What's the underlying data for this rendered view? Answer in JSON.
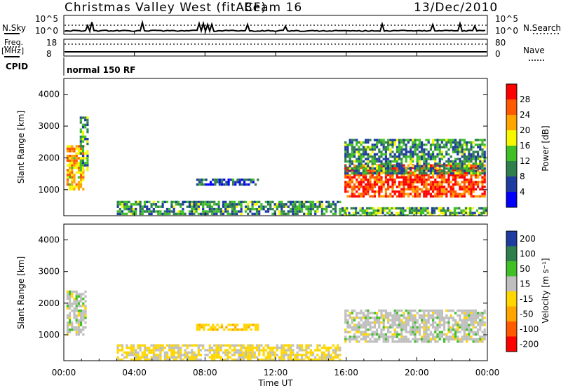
{
  "header": {
    "station": "Christmas Valley West (fitACF)",
    "beam": "Beam 16",
    "date": "13/Dec/2010"
  },
  "top_panels": {
    "nsky_label": "N.Sky",
    "nsky_ticks": [
      "10^5",
      "10^0"
    ],
    "nsearch_label": "N.Search",
    "nsearch_ticks": [
      "10^5",
      "10^0"
    ],
    "freq_label": "Freq.",
    "freq_unit": "[MHz]",
    "freq_ticks": [
      "18",
      "8"
    ],
    "nave_label": "Nave",
    "nave_ticks": [
      "80",
      "0"
    ],
    "cpid_label": "CPID",
    "cpid_value": "normal 150 RF"
  },
  "chart_data": [
    {
      "type": "heatmap",
      "name": "power",
      "ylabel": "Slant Range [km]",
      "xlabel": "",
      "ylim": [
        180,
        4500
      ],
      "y_ticks": [
        "1000",
        "2000",
        "3000",
        "4000"
      ],
      "x_range_hours": [
        0,
        24
      ],
      "colorbar": {
        "label": "Power [dB]",
        "ticks": [
          "4",
          "8",
          "12",
          "16",
          "20",
          "24",
          "28"
        ],
        "range": [
          0,
          30
        ],
        "colors": [
          "#0000ff",
          "#1e3ca0",
          "#2f7f4c",
          "#40bf26",
          "#f7f700",
          "#ffa500",
          "#ff5a00",
          "#ff0000"
        ]
      },
      "regions": [
        {
          "t": [
            0.15,
            1.1
          ],
          "r": [
            1000,
            2400
          ],
          "value": 20,
          "note_hours": ""
        },
        {
          "t": [
            0.9,
            1.4
          ],
          "r": [
            1600,
            3300
          ],
          "value": 12
        },
        {
          "t": [
            7.5,
            11.0
          ],
          "r": [
            1150,
            1350
          ],
          "value": 6
        },
        {
          "t": [
            3.0,
            15.6
          ],
          "r": [
            220,
            650
          ],
          "value": 10
        },
        {
          "t": [
            15.9,
            23.9
          ],
          "r": [
            800,
            1800
          ],
          "value": 26
        },
        {
          "t": [
            15.9,
            23.9
          ],
          "r": [
            1500,
            2600
          ],
          "value": 10
        },
        {
          "t": [
            15.6,
            24.0
          ],
          "r": [
            220,
            450
          ],
          "value": 12
        }
      ]
    },
    {
      "type": "heatmap",
      "name": "velocity",
      "ylabel": "Slant Range [km]",
      "xlabel": "Time UT",
      "ylim": [
        180,
        4500
      ],
      "y_ticks": [
        "1000",
        "2000",
        "3000",
        "4000"
      ],
      "x_ticks": [
        "00:00",
        "04:00",
        "08:00",
        "12:00",
        "16:00",
        "20:00",
        "00:00"
      ],
      "x_range_hours": [
        0,
        24
      ],
      "colorbar": {
        "label": "Velocity [m s⁻¹]",
        "ticks": [
          "200",
          "100",
          "50",
          "15",
          "-15",
          "-50",
          "-100",
          "-200"
        ],
        "colors": [
          "#1e3ca0",
          "#2f7f4c",
          "#40bf26",
          "#bfbfbf",
          "#ffd700",
          "#ffa500",
          "#ff5a00",
          "#ff0000"
        ]
      },
      "regions": [
        {
          "t": [
            0.15,
            1.2
          ],
          "r": [
            1000,
            2400
          ],
          "value": 0
        },
        {
          "t": [
            3.0,
            15.6
          ],
          "r": [
            220,
            700
          ],
          "value": -20
        },
        {
          "t": [
            15.9,
            23.9
          ],
          "r": [
            800,
            1800
          ],
          "value": 0
        },
        {
          "t": [
            7.5,
            11.0
          ],
          "r": [
            1150,
            1350
          ],
          "value": -40
        }
      ]
    }
  ]
}
